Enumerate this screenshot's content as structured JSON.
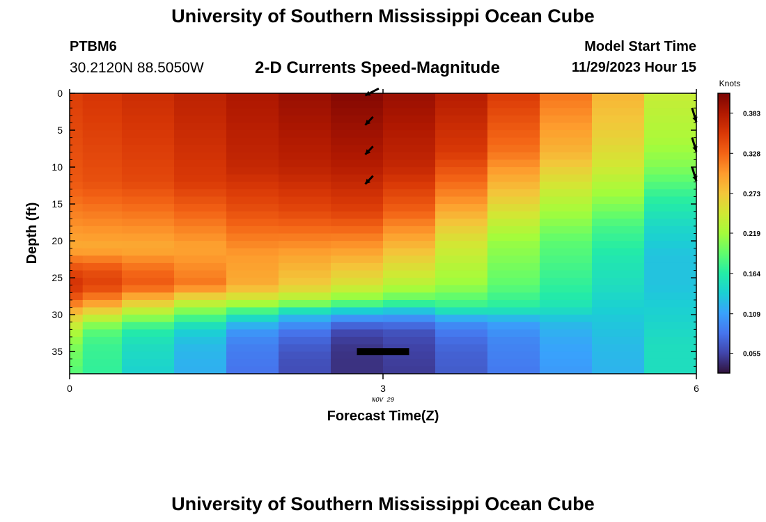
{
  "header": {
    "title": "University of Southern Mississippi Ocean Cube",
    "station": "PTBM6",
    "coordinates": "30.2120N  88.5050W",
    "plot_title": "2-D Currents Speed-Magnitude",
    "model_start_label": "Model Start Time",
    "model_start_value": "11/29/2023 Hour 15",
    "bottom_title": "University of Southern Mississippi Ocean Cube"
  },
  "chart_data": {
    "type": "heatmap",
    "title": "2-D Currents Speed-Magnitude",
    "xlabel": "Forecast Time(Z)",
    "ylabel": "Depth (ft)",
    "date_label": "NOV 29",
    "colorbar_title": "Knots",
    "xlim": [
      0,
      6
    ],
    "ylim": [
      38,
      0
    ],
    "x_ticks": [
      0,
      3,
      6
    ],
    "y_ticks": [
      0,
      5,
      10,
      15,
      20,
      25,
      30,
      35
    ],
    "colorbar_range": [
      0.028,
      0.41
    ],
    "colorbar_ticks": [
      0.055,
      0.109,
      0.164,
      0.219,
      0.273,
      0.328,
      0.383
    ],
    "colormap": [
      "#30123b",
      "#4145ab",
      "#4675ed",
      "#39a2fc",
      "#1bcfd4",
      "#24eca6",
      "#61fc6c",
      "#a4fc3b",
      "#d1e834",
      "#f3c63a",
      "#fe9b2d",
      "#f36315",
      "#d93806",
      "#b11901",
      "#7a0403"
    ],
    "time_columns": [
      0,
      0.25,
      0.75,
      1.25,
      1.75,
      2.25,
      2.75,
      3.25,
      3.75,
      4.25,
      4.75,
      5.25,
      5.75
    ],
    "column_profiles": [
      {
        "time": 0,
        "depth": [
          0,
          12,
          21,
          24,
          26,
          28,
          30,
          32,
          34,
          36,
          38
        ],
        "speed": [
          0.352,
          0.335,
          0.29,
          0.345,
          0.362,
          0.33,
          0.27,
          0.23,
          0.205,
          0.195,
          0.185
        ]
      },
      {
        "time": 0.25,
        "depth": [
          0,
          12,
          21,
          24,
          26,
          28,
          30,
          32,
          34,
          36,
          38
        ],
        "speed": [
          0.358,
          0.34,
          0.29,
          0.34,
          0.35,
          0.31,
          0.25,
          0.19,
          0.175,
          0.172,
          0.17
        ]
      },
      {
        "time": 0.75,
        "depth": [
          0,
          12,
          21,
          24,
          26,
          28,
          30,
          32,
          34,
          36,
          38
        ],
        "speed": [
          0.365,
          0.345,
          0.29,
          0.325,
          0.335,
          0.28,
          0.22,
          0.165,
          0.15,
          0.145,
          0.14
        ]
      },
      {
        "time": 1.25,
        "depth": [
          0,
          12,
          21,
          24,
          26,
          28,
          30,
          32,
          34,
          36,
          38
        ],
        "speed": [
          0.375,
          0.355,
          0.295,
          0.31,
          0.32,
          0.25,
          0.19,
          0.14,
          0.125,
          0.12,
          0.118
        ]
      },
      {
        "time": 1.75,
        "depth": [
          0,
          10,
          16,
          22,
          26,
          28,
          30,
          32,
          34,
          36,
          38
        ],
        "speed": [
          0.385,
          0.37,
          0.34,
          0.3,
          0.29,
          0.24,
          0.16,
          0.105,
          0.09,
          0.085,
          0.082
        ]
      },
      {
        "time": 2.25,
        "depth": [
          0,
          10,
          16,
          22,
          26,
          28,
          30,
          32,
          34,
          36,
          38
        ],
        "speed": [
          0.395,
          0.375,
          0.345,
          0.295,
          0.27,
          0.225,
          0.13,
          0.085,
          0.07,
          0.062,
          0.06
        ]
      },
      {
        "time": 2.75,
        "depth": [
          0,
          10,
          16,
          22,
          26,
          28,
          30,
          32,
          34,
          36,
          38
        ],
        "speed": [
          0.405,
          0.38,
          0.35,
          0.29,
          0.25,
          0.205,
          0.115,
          0.06,
          0.048,
          0.045,
          0.045
        ]
      },
      {
        "time": 3.25,
        "depth": [
          0,
          10,
          16,
          22,
          26,
          28,
          30,
          32,
          34,
          36,
          38
        ],
        "speed": [
          0.395,
          0.37,
          0.33,
          0.27,
          0.23,
          0.19,
          0.11,
          0.065,
          0.055,
          0.052,
          0.05
        ]
      },
      {
        "time": 3.75,
        "depth": [
          0,
          8,
          14,
          20,
          26,
          29,
          31,
          33,
          35,
          38
        ],
        "speed": [
          0.38,
          0.355,
          0.31,
          0.25,
          0.215,
          0.17,
          0.1,
          0.08,
          0.072,
          0.068
        ]
      },
      {
        "time": 4.25,
        "depth": [
          0,
          8,
          14,
          20,
          26,
          29,
          31,
          33,
          35,
          38
        ],
        "speed": [
          0.355,
          0.32,
          0.27,
          0.215,
          0.19,
          0.165,
          0.11,
          0.095,
          0.09,
          0.085
        ]
      },
      {
        "time": 4.75,
        "depth": [
          0,
          8,
          14,
          20,
          26,
          29,
          31,
          33,
          35,
          38
        ],
        "speed": [
          0.32,
          0.285,
          0.235,
          0.19,
          0.17,
          0.155,
          0.125,
          0.115,
          0.11,
          0.105
        ]
      },
      {
        "time": 5.25,
        "depth": [
          0,
          6,
          10,
          14,
          18,
          22,
          26,
          30,
          34,
          38
        ],
        "speed": [
          0.285,
          0.265,
          0.245,
          0.215,
          0.18,
          0.16,
          0.15,
          0.135,
          0.125,
          0.12
        ]
      },
      {
        "time": 5.75,
        "depth": [
          0,
          6,
          10,
          14,
          18,
          22,
          26,
          30,
          34,
          38
        ],
        "speed": [
          0.24,
          0.225,
          0.205,
          0.17,
          0.145,
          0.13,
          0.13,
          0.14,
          0.15,
          0.15
        ]
      }
    ],
    "vectors": [
      {
        "time": 2.83,
        "depth": 0.3,
        "dx": 0.17,
        "dy": -0.2
      },
      {
        "time": 2.83,
        "depth": 4.3,
        "dx": 0.2,
        "dy": -0.5
      },
      {
        "time": 2.83,
        "depth": 8.3,
        "dx": 0.2,
        "dy": -0.5
      },
      {
        "time": 2.83,
        "depth": 12.3,
        "dx": 0.2,
        "dy": -0.5
      },
      {
        "time": 6.0,
        "depth": 3.9,
        "dx": -0.19,
        "dy": -0.9
      },
      {
        "time": 6.0,
        "depth": 7.9,
        "dx": -0.19,
        "dy": -0.9
      },
      {
        "time": 6.0,
        "depth": 11.9,
        "dx": -0.19,
        "dy": -0.9
      }
    ],
    "bottom_marker": {
      "time_start": 2.75,
      "time_end": 3.25,
      "depth": 35
    }
  }
}
